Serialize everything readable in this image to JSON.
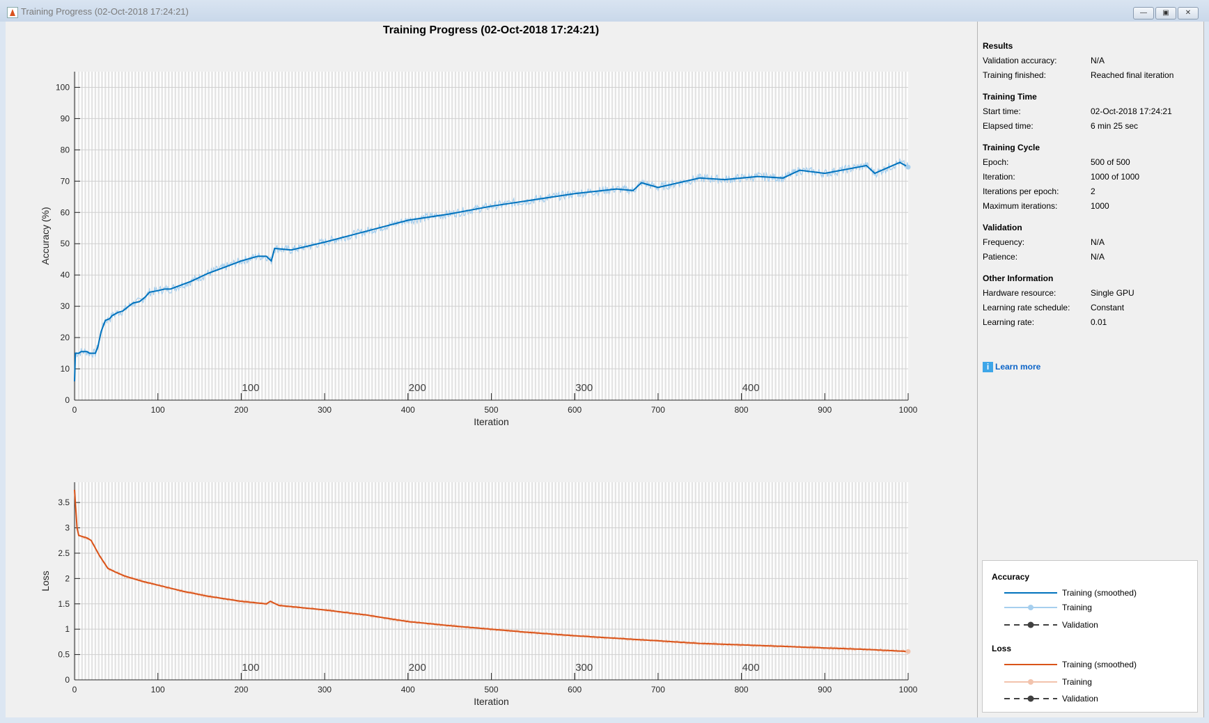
{
  "window": {
    "title": "Training Progress (02-Oct-2018 17:24:21)",
    "buttons": [
      "minimize",
      "maximize",
      "close"
    ]
  },
  "figure_title": "Training Progress (02-Oct-2018 17:24:21)",
  "colors": {
    "accuracy_smoothed": "#0072bd",
    "accuracy_raw": "#a6cfee",
    "loss_smoothed": "#d95319",
    "loss_raw": "#f2c3ad"
  },
  "chart_data": [
    {
      "type": "line",
      "title": "",
      "xlabel": "Iteration",
      "ylabel": "Accuracy (%)",
      "xlim": [
        0,
        1000
      ],
      "ylim": [
        0,
        105
      ],
      "grid": true,
      "xticks": [
        0,
        100,
        200,
        300,
        400,
        500,
        600,
        700,
        800,
        900,
        1000
      ],
      "yticks": [
        0,
        10,
        20,
        30,
        40,
        50,
        60,
        70,
        80,
        90,
        100
      ],
      "epoch_labels": [
        {
          "iteration": 200,
          "label": "100"
        },
        {
          "iteration": 400,
          "label": "200"
        },
        {
          "iteration": 600,
          "label": "300"
        },
        {
          "iteration": 800,
          "label": "400"
        }
      ],
      "series": [
        {
          "name": "Training (smoothed)",
          "x": [
            0,
            1,
            5,
            8,
            15,
            18,
            25,
            28,
            32,
            37,
            42,
            45,
            52,
            58,
            65,
            70,
            78,
            85,
            90,
            100,
            108,
            115,
            125,
            140,
            160,
            180,
            200,
            220,
            230,
            236,
            240,
            260,
            300,
            350,
            400,
            450,
            500,
            550,
            600,
            650,
            670,
            680,
            700,
            750,
            780,
            820,
            850,
            870,
            900,
            950,
            960,
            990,
            1000
          ],
          "y": [
            6,
            15,
            15,
            15.5,
            15.5,
            15,
            15,
            17,
            22,
            25.5,
            26,
            27,
            28,
            28.5,
            30,
            31,
            31.5,
            33,
            34.5,
            35,
            35.5,
            35.5,
            36.5,
            38,
            40.5,
            42.5,
            44.5,
            46,
            46,
            44.5,
            48.5,
            48,
            50.5,
            54,
            57.5,
            59.5,
            62,
            64,
            66,
            67.5,
            67,
            69.5,
            68,
            71,
            70.5,
            71.5,
            71,
            73.5,
            72.5,
            75,
            72.5,
            76,
            74.5
          ]
        }
      ]
    },
    {
      "type": "line",
      "title": "",
      "xlabel": "Iteration",
      "ylabel": "Loss",
      "xlim": [
        0,
        1000
      ],
      "ylim": [
        0,
        3.9
      ],
      "grid": true,
      "xticks": [
        0,
        100,
        200,
        300,
        400,
        500,
        600,
        700,
        800,
        900,
        1000
      ],
      "yticks": [
        0,
        0.5,
        1,
        1.5,
        2,
        2.5,
        3,
        3.5
      ],
      "ytick_labels": [
        "0",
        "0.5",
        "1",
        "1.5",
        "2",
        "2.5",
        "3",
        "3.5"
      ],
      "epoch_labels": [
        {
          "iteration": 200,
          "label": "100"
        },
        {
          "iteration": 400,
          "label": "200"
        },
        {
          "iteration": 600,
          "label": "300"
        },
        {
          "iteration": 800,
          "label": "400"
        }
      ],
      "series": [
        {
          "name": "Training (smoothed)",
          "x": [
            0,
            3,
            5,
            15,
            20,
            30,
            40,
            50,
            60,
            80,
            100,
            130,
            160,
            200,
            230,
            235,
            245,
            300,
            350,
            400,
            450,
            500,
            550,
            600,
            650,
            700,
            750,
            800,
            850,
            900,
            950,
            1000
          ],
          "y": [
            3.75,
            3.0,
            2.85,
            2.8,
            2.75,
            2.45,
            2.2,
            2.12,
            2.05,
            1.95,
            1.87,
            1.75,
            1.65,
            1.55,
            1.5,
            1.55,
            1.47,
            1.38,
            1.28,
            1.15,
            1.07,
            1.0,
            0.93,
            0.87,
            0.82,
            0.77,
            0.72,
            0.69,
            0.66,
            0.63,
            0.6,
            0.56
          ]
        }
      ]
    }
  ],
  "panel": {
    "sections": [
      {
        "title": "Results",
        "rows": [
          [
            "Validation accuracy:",
            "N/A"
          ],
          [
            "Training finished:",
            "Reached final iteration"
          ]
        ]
      },
      {
        "title": "Training Time",
        "rows": [
          [
            "Start time:",
            "02-Oct-2018 17:24:21"
          ],
          [
            "Elapsed time:",
            "6 min 25 sec"
          ]
        ]
      },
      {
        "title": "Training Cycle",
        "rows": [
          [
            "Epoch:",
            "500 of 500"
          ],
          [
            "Iteration:",
            "1000 of 1000"
          ],
          [
            "Iterations per epoch:",
            "2"
          ],
          [
            "Maximum iterations:",
            "1000"
          ]
        ]
      },
      {
        "title": "Validation",
        "rows": [
          [
            "Frequency:",
            "N/A"
          ],
          [
            "Patience:",
            "N/A"
          ]
        ]
      },
      {
        "title": "Other Information",
        "rows": [
          [
            "Hardware resource:",
            "Single GPU"
          ],
          [
            "Learning rate schedule:",
            "Constant"
          ],
          [
            "Learning rate:",
            "0.01"
          ]
        ]
      }
    ],
    "learn_more": "Learn more"
  },
  "legend": {
    "groups": [
      {
        "title": "Accuracy",
        "items": [
          "Training (smoothed)",
          "Training",
          "Validation"
        ]
      },
      {
        "title": "Loss",
        "items": [
          "Training (smoothed)",
          "Training",
          "Validation"
        ]
      }
    ]
  }
}
